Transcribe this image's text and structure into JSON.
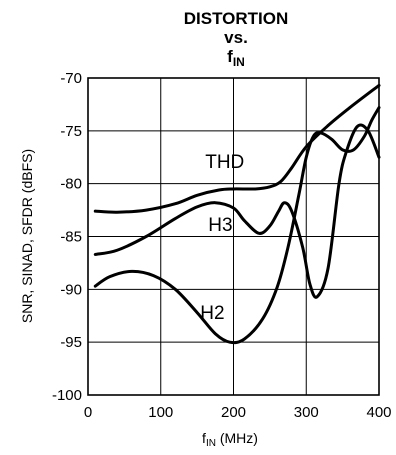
{
  "chart_data": {
    "type": "line",
    "title": {
      "line1": "DISTORTION",
      "line2": "vs.",
      "line3_main": "f",
      "line3_sub": "IN"
    },
    "xlabel": {
      "main": "f",
      "sub": "IN",
      "rest": " (MHz)"
    },
    "ylabel": "SNR, SINAD, SFDR (dBFS)",
    "xlim": [
      0,
      400
    ],
    "ylim": [
      -100,
      -70
    ],
    "xticks": [
      0,
      100,
      200,
      300,
      400
    ],
    "yticks": [
      -70,
      -75,
      -80,
      -85,
      -90,
      -95,
      -100
    ],
    "xtick_labels": [
      "0",
      "100",
      "200",
      "300",
      "400"
    ],
    "ytick_labels": [
      "-70",
      "-75",
      "-80",
      "-85",
      "-90",
      "-95",
      "-100"
    ],
    "grid": true,
    "series": [
      {
        "name": "THD",
        "x": [
          10,
          40,
          80,
          120,
          150,
          180,
          200,
          230,
          250,
          265,
          280,
          300,
          330,
          360,
          400
        ],
        "y": [
          -82.6,
          -82.7,
          -82.5,
          -81.9,
          -81.1,
          -80.6,
          -80.5,
          -80.5,
          -80.3,
          -79.8,
          -78.5,
          -76.5,
          -74.5,
          -72.8,
          -70.7
        ]
      },
      {
        "name": "H3",
        "x": [
          10,
          40,
          80,
          120,
          150,
          175,
          200,
          215,
          235,
          250,
          262,
          270,
          280,
          295,
          305,
          315,
          330,
          345,
          355,
          370,
          385,
          400
        ],
        "y": [
          -86.7,
          -86.3,
          -85.0,
          -83.3,
          -82.2,
          -81.8,
          -82.3,
          -83.5,
          -84.7,
          -84.0,
          -82.6,
          -81.8,
          -82.6,
          -86.0,
          -89.5,
          -90.7,
          -88.0,
          -80.0,
          -77.0,
          -74.6,
          -75.0,
          -77.5
        ]
      },
      {
        "name": "H2",
        "x": [
          10,
          30,
          60,
          90,
          120,
          150,
          175,
          195,
          215,
          240,
          260,
          275,
          290,
          300,
          310,
          320,
          335,
          350,
          365,
          380,
          390,
          400
        ],
        "y": [
          -89.7,
          -88.8,
          -88.3,
          -88.7,
          -90.0,
          -92.2,
          -94.2,
          -95.0,
          -94.7,
          -92.8,
          -89.8,
          -86.0,
          -81.0,
          -77.5,
          -75.5,
          -75.2,
          -75.8,
          -76.8,
          -76.8,
          -75.5,
          -74.0,
          -72.8
        ]
      }
    ],
    "annotations": [
      {
        "text": "THD",
        "x": 188,
        "y": -78.5
      },
      {
        "text": "H3",
        "x": 182,
        "y": -84.5
      },
      {
        "text": "H2",
        "x": 171,
        "y": -92.8
      }
    ]
  }
}
